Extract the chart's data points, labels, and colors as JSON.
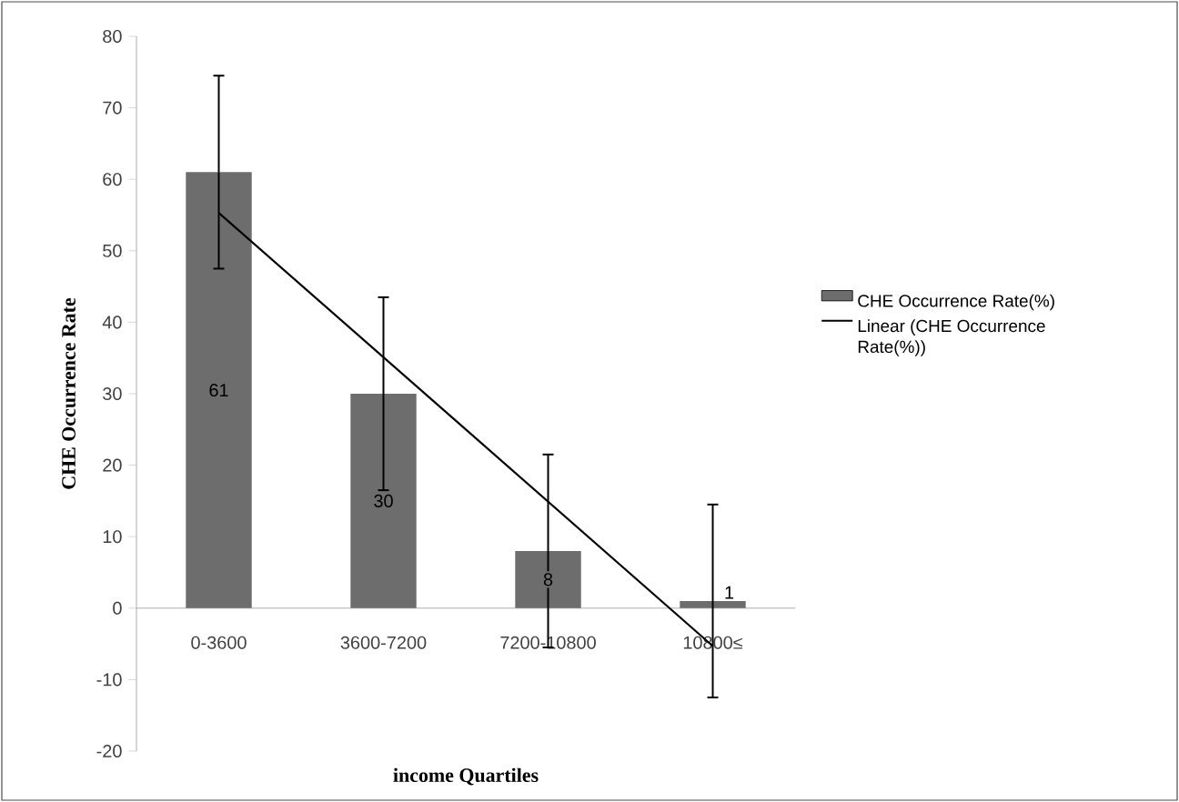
{
  "chart_data": {
    "type": "bar",
    "xlabel": "income Quartiles",
    "ylabel": "CHE Occurrence Rate",
    "categories": [
      "0-3600",
      "3600-7200",
      "7200-10800",
      "10800≤"
    ],
    "series": [
      {
        "name": "CHE Occurrence Rate(%)",
        "color": "#6d6d6d",
        "values": [
          61,
          30,
          8,
          1
        ],
        "errors": [
          13.5,
          13.5,
          13.5,
          13.5
        ],
        "value_labels": [
          "61",
          "30",
          "8",
          "1"
        ]
      },
      {
        "name": "Linear (CHE Occurrence Rate(%))",
        "type": "line",
        "color": "#000000",
        "values": [
          55.3,
          35.1,
          14.9,
          -5.3
        ]
      }
    ],
    "ylim": [
      -20,
      80
    ],
    "yticks": [
      -20,
      -10,
      0,
      10,
      20,
      30,
      40,
      50,
      60,
      70,
      80
    ],
    "legend": "right",
    "grid": false,
    "marker": "none",
    "line_style": "solid"
  }
}
